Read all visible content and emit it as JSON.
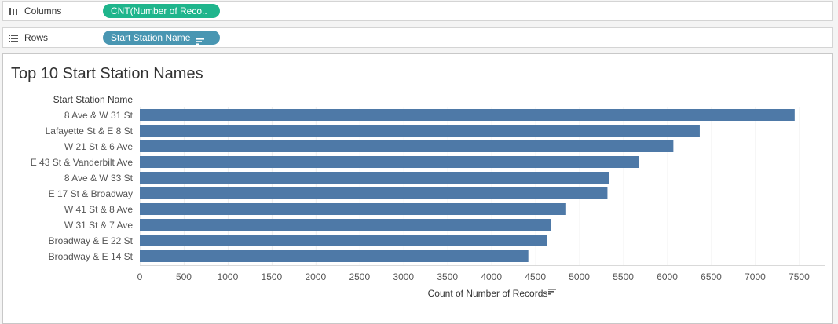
{
  "shelves": {
    "columns": {
      "label": "Columns",
      "pill": "CNT(Number of Reco..",
      "pill_color": "#1fb58c"
    },
    "rows": {
      "label": "Rows",
      "pill": "Start Station Name",
      "pill_color": "#4996b2"
    }
  },
  "chart_data": {
    "type": "bar",
    "orientation": "horizontal",
    "title": "Top 10 Start Station Names",
    "row_header": "Start Station Name",
    "xlabel": "Count of Number of Records",
    "categories": [
      "8 Ave & W 31 St",
      "Lafayette St & E 8 St",
      "W 21 St & 6 Ave",
      "E 43 St & Vanderbilt Ave",
      "8 Ave & W 33 St",
      "E 17 St & Broadway",
      "W 41 St & 8 Ave",
      "W 31 St & 7 Ave",
      "Broadway & E 22 St",
      "Broadway & E 14 St"
    ],
    "values": [
      7450,
      6370,
      6070,
      5680,
      5340,
      5320,
      4850,
      4680,
      4630,
      4420
    ],
    "xlim": [
      0,
      7800
    ],
    "xticks": [
      0,
      500,
      1000,
      1500,
      2000,
      2500,
      3000,
      3500,
      4000,
      4500,
      5000,
      5500,
      6000,
      6500,
      7000,
      7500
    ],
    "bar_color": "#4e79a7",
    "grid": true
  }
}
